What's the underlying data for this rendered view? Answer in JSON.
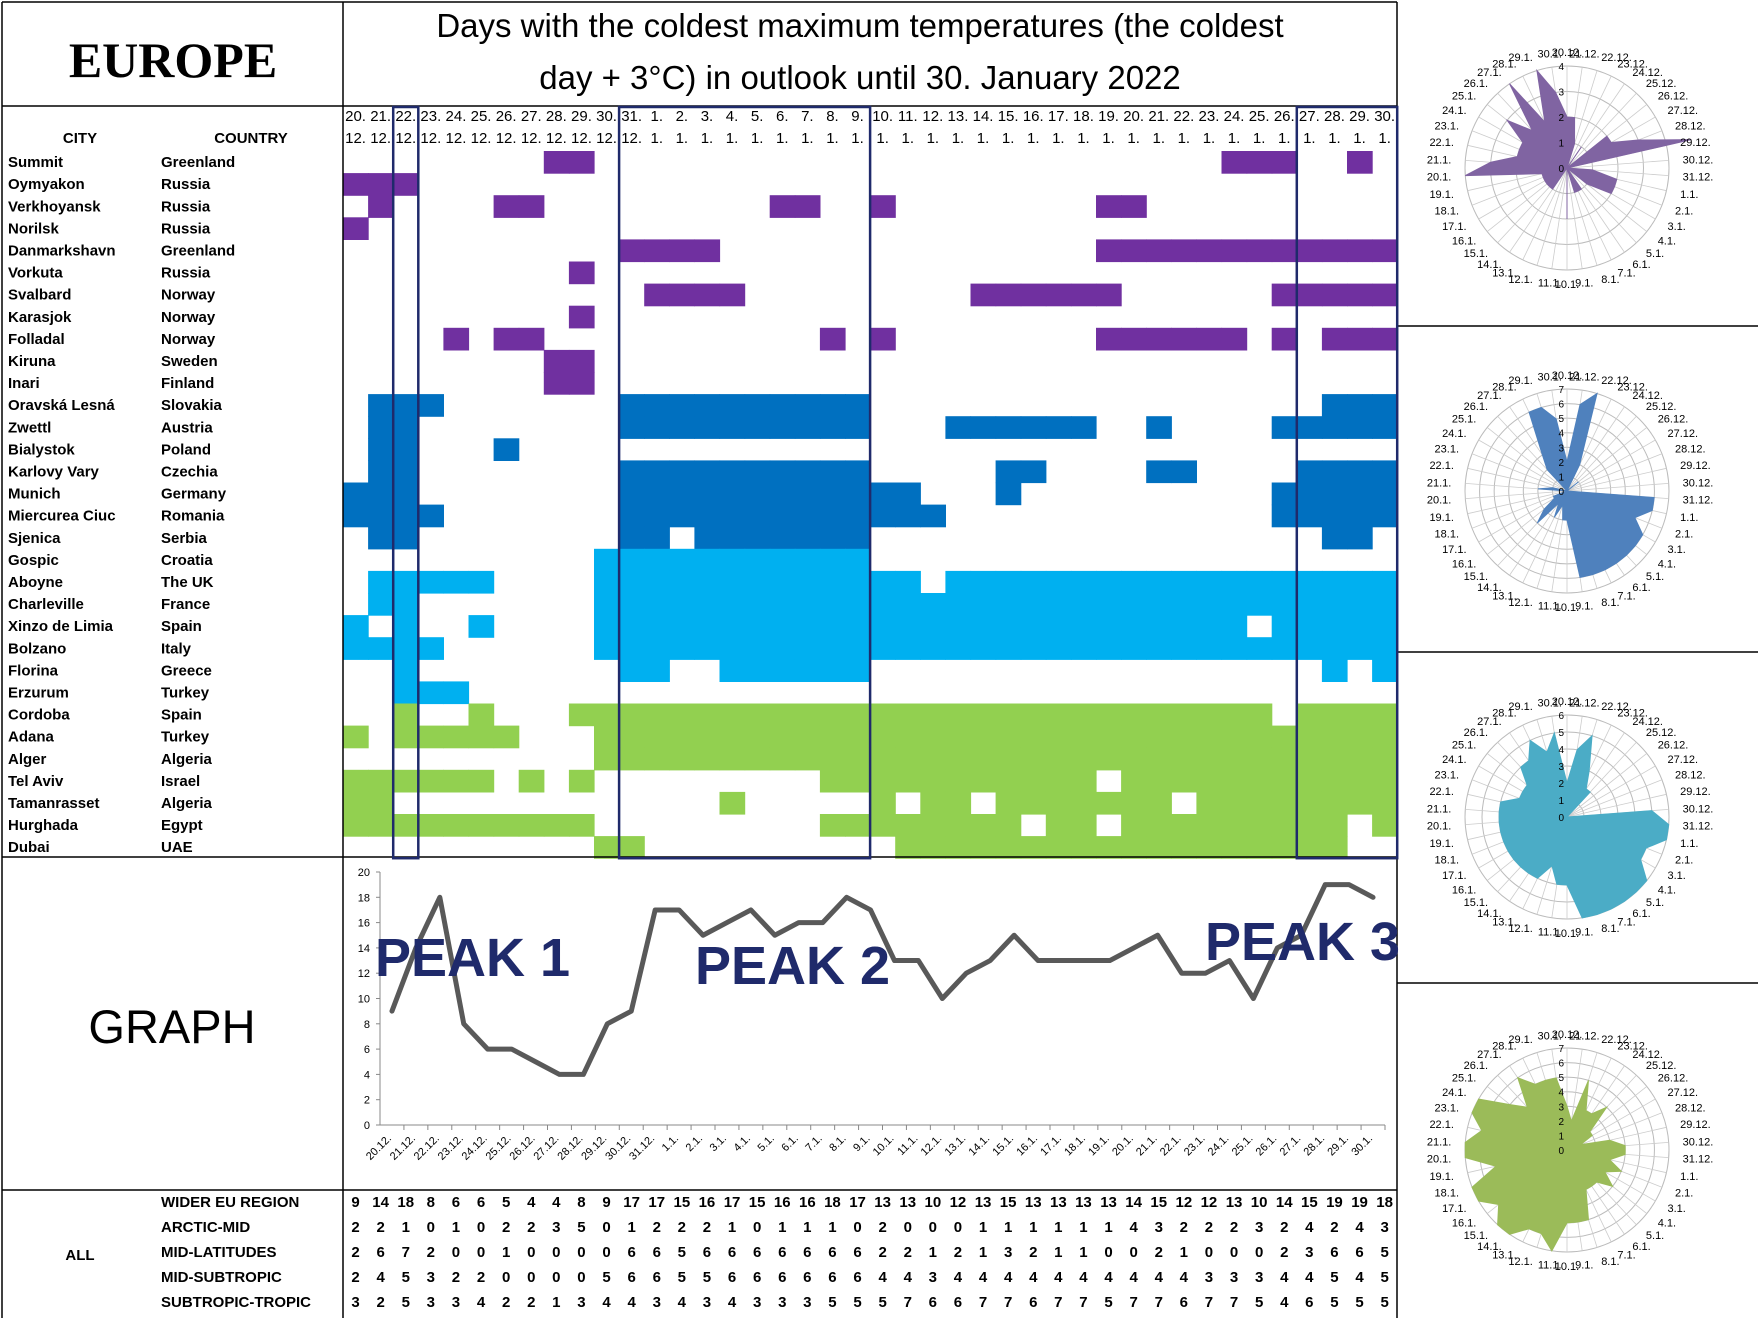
{
  "header": {
    "region": "EUROPE",
    "title_line1": "Days with the coldest maximum temperatures (the coldest",
    "title_line2": "day + 3°C) in outlook until 30. January 2022",
    "city_label": "CITY",
    "country_label": "COUNTRY"
  },
  "dates": {
    "day": [
      "20.",
      "21.",
      "22.",
      "23.",
      "24.",
      "25.",
      "26.",
      "27.",
      "28.",
      "29.",
      "30.",
      "31.",
      "1.",
      "2.",
      "3.",
      "4.",
      "5.",
      "6.",
      "7.",
      "8.",
      "9.",
      "10.",
      "11.",
      "12.",
      "13.",
      "14.",
      "15.",
      "16.",
      "17.",
      "18.",
      "19.",
      "20.",
      "21.",
      "22.",
      "23.",
      "24.",
      "25.",
      "26.",
      "27.",
      "28.",
      "29.",
      "30."
    ],
    "month": [
      "12.",
      "12.",
      "12.",
      "12.",
      "12.",
      "12.",
      "12.",
      "12.",
      "12.",
      "12.",
      "12.",
      "12.",
      "1.",
      "1.",
      "1.",
      "1.",
      "1.",
      "1.",
      "1.",
      "1.",
      "1.",
      "1.",
      "1.",
      "1.",
      "1.",
      "1.",
      "1.",
      "1.",
      "1.",
      "1.",
      "1.",
      "1.",
      "1.",
      "1.",
      "1.",
      "1.",
      "1.",
      "1.",
      "1.",
      "1.",
      "1.",
      "1."
    ],
    "short": [
      "20.12.",
      "21.12.",
      "22.12.",
      "23.12.",
      "24.12.",
      "25.12.",
      "26.12.",
      "27.12.",
      "28.12.",
      "29.12.",
      "30.12.",
      "31.12.",
      "1.1.",
      "2.1.",
      "3.1.",
      "4.1.",
      "5.1.",
      "6.1.",
      "7.1.",
      "8.1.",
      "9.1.",
      "10.1.",
      "11.1.",
      "12.1.",
      "13.1.",
      "14.1.",
      "15.1.",
      "16.1.",
      "17.1.",
      "18.1.",
      "19.1.",
      "20.1.",
      "21.1.",
      "22.1.",
      "23.1.",
      "24.1.",
      "25.1.",
      "26.1.",
      "27.1.",
      "28.1.",
      "29.1.",
      "30.1."
    ]
  },
  "colors": {
    "arctic": "#7030A0",
    "midlat": "#0070C0",
    "midsub": "#00B0F0",
    "subtrop": "#92D050",
    "frame": "#1F2A6B",
    "line": "#595959",
    "peak_text": "#1F2A6B",
    "radar_arctic": "#8064A2",
    "radar_midlat": "#4F81BD",
    "radar_midsub": "#4BACC6",
    "radar_subtrop": "#9BBB59"
  },
  "cities": [
    {
      "city": "Summit",
      "country": "Greenland",
      "group": "arctic",
      "days": [
        8,
        9,
        35,
        36,
        37,
        40
      ]
    },
    {
      "city": "Oymyakon",
      "country": "Russia",
      "group": "arctic",
      "days": [
        0,
        1,
        2
      ]
    },
    {
      "city": "Verkhoyansk",
      "country": "Russia",
      "group": "arctic",
      "days": [
        1,
        6,
        7,
        17,
        18,
        21,
        30,
        31
      ]
    },
    {
      "city": "Norilsk",
      "country": "Russia",
      "group": "arctic",
      "days": [
        0
      ]
    },
    {
      "city": "Danmarkshavn",
      "country": "Greenland",
      "group": "arctic",
      "days": [
        11,
        12,
        13,
        14,
        30,
        31,
        32,
        33,
        34,
        35,
        36,
        37,
        38,
        39,
        40,
        41
      ]
    },
    {
      "city": "Vorkuta",
      "country": "Russia",
      "group": "arctic",
      "days": [
        9
      ]
    },
    {
      "city": "Svalbard",
      "country": "Norway",
      "group": "arctic",
      "days": [
        12,
        13,
        14,
        15,
        25,
        26,
        27,
        28,
        29,
        30,
        37,
        38,
        39,
        40,
        41
      ]
    },
    {
      "city": "Karasjok",
      "country": "Norway",
      "group": "arctic",
      "days": [
        9
      ]
    },
    {
      "city": "Folladal",
      "country": "Norway",
      "group": "arctic",
      "days": [
        4,
        6,
        7,
        19,
        21,
        30,
        31,
        32,
        33,
        34,
        35,
        37,
        39,
        40,
        41
      ]
    },
    {
      "city": "Kiruna",
      "country": "Sweden",
      "group": "arctic",
      "days": [
        8,
        9
      ]
    },
    {
      "city": "Inari",
      "country": "Finland",
      "group": "arctic",
      "days": [
        8,
        9
      ]
    },
    {
      "city": "Oravská Lesná",
      "country": "Slovakia",
      "group": "midlat",
      "days": [
        1,
        2,
        3,
        11,
        12,
        13,
        14,
        15,
        16,
        17,
        18,
        19,
        20,
        39,
        40,
        41
      ]
    },
    {
      "city": "Zwettl",
      "country": "Austria",
      "group": "midlat",
      "days": [
        1,
        2,
        11,
        12,
        13,
        14,
        15,
        16,
        17,
        18,
        19,
        20,
        24,
        25,
        26,
        27,
        28,
        29,
        32,
        37,
        38,
        39,
        40,
        41
      ]
    },
    {
      "city": "Bialystok",
      "country": "Poland",
      "group": "midlat",
      "days": [
        1,
        2,
        6
      ]
    },
    {
      "city": "Karlovy Vary",
      "country": "Czechia",
      "group": "midlat",
      "days": [
        1,
        2,
        11,
        12,
        13,
        14,
        15,
        16,
        17,
        18,
        19,
        20,
        26,
        27,
        32,
        33,
        38,
        39,
        40,
        41
      ]
    },
    {
      "city": "Munich",
      "country": "Germany",
      "group": "midlat",
      "days": [
        0,
        1,
        2,
        11,
        12,
        13,
        14,
        15,
        16,
        17,
        18,
        19,
        20,
        21,
        22,
        26,
        37,
        38,
        39,
        40,
        41
      ]
    },
    {
      "city": "Miercurea Ciuc",
      "country": "Romania",
      "group": "midlat",
      "days": [
        0,
        1,
        2,
        3,
        11,
        12,
        13,
        14,
        15,
        16,
        17,
        18,
        19,
        20,
        21,
        22,
        23,
        37,
        38,
        39,
        40,
        41
      ]
    },
    {
      "city": "Sjenica",
      "country": "Serbia",
      "group": "midlat",
      "days": [
        1,
        2,
        11,
        12,
        14,
        15,
        16,
        17,
        18,
        19,
        20,
        39,
        40
      ]
    },
    {
      "city": "Gospic",
      "country": "Croatia",
      "group": "midsub",
      "days": [
        10,
        11,
        12,
        13,
        14,
        15,
        16,
        17,
        18,
        19,
        20
      ]
    },
    {
      "city": "Aboyne",
      "country": "The UK",
      "group": "midsub",
      "days": [
        1,
        2,
        3,
        4,
        5,
        10,
        11,
        12,
        13,
        14,
        15,
        16,
        17,
        18,
        19,
        20,
        21,
        22,
        24,
        25,
        26,
        27,
        28,
        29,
        30,
        31,
        32,
        33,
        34,
        35,
        36,
        37,
        38,
        39,
        40,
        41
      ]
    },
    {
      "city": "Charleville",
      "country": "France",
      "group": "midsub",
      "days": [
        1,
        2,
        10,
        11,
        12,
        13,
        14,
        15,
        16,
        17,
        18,
        19,
        20,
        21,
        22,
        23,
        24,
        25,
        26,
        27,
        28,
        29,
        30,
        31,
        32,
        33,
        34,
        35,
        36,
        37,
        38,
        39,
        40,
        41
      ]
    },
    {
      "city": "Xinzo de Limia",
      "country": "Spain",
      "group": "midsub",
      "days": [
        0,
        2,
        5,
        10,
        11,
        12,
        13,
        14,
        15,
        16,
        17,
        18,
        19,
        20,
        21,
        22,
        23,
        24,
        25,
        26,
        27,
        28,
        29,
        30,
        31,
        32,
        33,
        34,
        35,
        37,
        38,
        39,
        40,
        41
      ]
    },
    {
      "city": "Bolzano",
      "country": "Italy",
      "group": "midsub",
      "days": [
        0,
        1,
        2,
        3,
        10,
        11,
        12,
        13,
        14,
        15,
        16,
        17,
        18,
        19,
        20,
        21,
        22,
        23,
        24,
        25,
        26,
        27,
        28,
        29,
        30,
        31,
        32,
        33,
        34,
        35,
        36,
        37,
        38,
        39,
        40,
        41
      ]
    },
    {
      "city": "Florina",
      "country": "Greece",
      "group": "midsub",
      "days": [
        2,
        11,
        12,
        15,
        16,
        17,
        18,
        19,
        20,
        39,
        41
      ]
    },
    {
      "city": "Erzurum",
      "country": "Turkey",
      "group": "midsub",
      "days": [
        2,
        3,
        4
      ]
    },
    {
      "city": "Cordoba",
      "country": "Spain",
      "group": "subtrop",
      "days": [
        2,
        5,
        9,
        10,
        11,
        12,
        13,
        14,
        15,
        16,
        17,
        18,
        19,
        20,
        21,
        22,
        23,
        24,
        25,
        26,
        27,
        28,
        29,
        30,
        31,
        32,
        33,
        34,
        35,
        36,
        38,
        39,
        40,
        41
      ]
    },
    {
      "city": "Adana",
      "country": "Turkey",
      "group": "subtrop",
      "days": [
        0,
        2,
        3,
        4,
        5,
        6,
        10,
        11,
        12,
        13,
        14,
        15,
        16,
        17,
        18,
        19,
        20,
        21,
        22,
        23,
        24,
        25,
        26,
        27,
        28,
        29,
        30,
        31,
        32,
        33,
        34,
        35,
        36,
        37,
        38,
        39,
        40,
        41
      ]
    },
    {
      "city": "Alger",
      "country": "Algeria",
      "group": "subtrop",
      "days": [
        10,
        11,
        12,
        13,
        14,
        15,
        16,
        17,
        18,
        19,
        20,
        21,
        22,
        23,
        24,
        25,
        26,
        27,
        28,
        29,
        30,
        31,
        32,
        33,
        34,
        35,
        36,
        37,
        38,
        39,
        40,
        41
      ]
    },
    {
      "city": "Tel Aviv",
      "country": "Israel",
      "group": "subtrop",
      "days": [
        0,
        1,
        2,
        3,
        4,
        5,
        7,
        9,
        19,
        20,
        21,
        22,
        23,
        24,
        25,
        26,
        27,
        28,
        29,
        31,
        32,
        33,
        34,
        35,
        36,
        37,
        38,
        39,
        40,
        41
      ]
    },
    {
      "city": "Tamanrasset",
      "country": "Algeria",
      "group": "subtrop",
      "days": [
        0,
        1,
        15,
        21,
        23,
        24,
        26,
        27,
        28,
        29,
        30,
        31,
        32,
        34,
        35,
        36,
        37,
        38,
        39,
        40,
        41
      ]
    },
    {
      "city": "Hurghada",
      "country": "Egypt",
      "group": "subtrop",
      "days": [
        0,
        1,
        2,
        3,
        4,
        5,
        6,
        7,
        8,
        9,
        19,
        20,
        21,
        22,
        23,
        24,
        25,
        26,
        28,
        29,
        31,
        32,
        33,
        34,
        35,
        36,
        37,
        38,
        39,
        41
      ]
    },
    {
      "city": "Dubai",
      "country": "UAE",
      "group": "subtrop",
      "days": [
        10,
        11,
        22,
        23,
        24,
        25,
        26,
        27,
        28,
        29,
        30,
        31,
        32,
        33,
        34,
        35,
        36,
        37,
        38,
        39
      ]
    }
  ],
  "boxes": [
    {
      "from": 2,
      "to": 2
    },
    {
      "from": 11,
      "to": 20
    },
    {
      "from": 38,
      "to": 41
    }
  ],
  "graph": {
    "label": "GRAPH",
    "peaks": [
      "PEAK 1",
      "PEAK 2",
      "PEAK 3"
    ]
  },
  "summary": {
    "all_label": "ALL",
    "rows": [
      {
        "label": "WIDER EU REGION",
        "values": [
          9,
          14,
          18,
          8,
          6,
          6,
          5,
          4,
          4,
          8,
          9,
          17,
          17,
          15,
          16,
          17,
          15,
          16,
          16,
          18,
          17,
          13,
          13,
          10,
          12,
          13,
          15,
          13,
          13,
          13,
          13,
          14,
          15,
          12,
          12,
          13,
          10,
          14,
          15,
          19,
          19,
          18
        ]
      },
      {
        "label": "ARCTIC-MID",
        "values": [
          2,
          2,
          1,
          0,
          1,
          0,
          2,
          2,
          3,
          5,
          0,
          1,
          2,
          2,
          2,
          1,
          0,
          1,
          1,
          1,
          0,
          2,
          0,
          0,
          0,
          1,
          1,
          1,
          1,
          1,
          1,
          4,
          3,
          2,
          2,
          2,
          3,
          2,
          4,
          2,
          4,
          3
        ]
      },
      {
        "label": "MID-LATITUDES",
        "values": [
          2,
          6,
          7,
          2,
          0,
          0,
          1,
          0,
          0,
          0,
          0,
          6,
          6,
          5,
          6,
          6,
          6,
          6,
          6,
          6,
          6,
          2,
          2,
          1,
          2,
          1,
          3,
          2,
          1,
          1,
          0,
          0,
          2,
          1,
          0,
          0,
          0,
          2,
          3,
          6,
          6,
          5
        ]
      },
      {
        "label": "MID-SUBTROPIC",
        "values": [
          2,
          4,
          5,
          3,
          2,
          2,
          0,
          0,
          0,
          0,
          5,
          6,
          6,
          5,
          5,
          6,
          6,
          6,
          6,
          6,
          6,
          4,
          4,
          3,
          4,
          4,
          4,
          4,
          4,
          4,
          4,
          4,
          4,
          4,
          3,
          3,
          3,
          4,
          4,
          5,
          4,
          5
        ]
      },
      {
        "label": "SUBTROPIC-TROPIC",
        "values": [
          3,
          2,
          5,
          3,
          3,
          4,
          2,
          2,
          1,
          3,
          4,
          4,
          3,
          4,
          3,
          4,
          3,
          3,
          3,
          5,
          5,
          5,
          7,
          6,
          6,
          7,
          7,
          6,
          7,
          7,
          5,
          7,
          7,
          6,
          7,
          7,
          5,
          4,
          6,
          5,
          5,
          5
        ]
      }
    ]
  },
  "chart_data": [
    {
      "type": "heatmap",
      "title": "Days with the coldest maximum temperatures (the coldest day + 3°C) in outlook until 30. January 2022",
      "x": [
        "20.12.",
        "21.12.",
        "22.12.",
        "23.12.",
        "24.12.",
        "25.12.",
        "26.12.",
        "27.12.",
        "28.12.",
        "29.12.",
        "30.12.",
        "31.12.",
        "1.1.",
        "2.1.",
        "3.1.",
        "4.1.",
        "5.1.",
        "6.1.",
        "7.1.",
        "8.1.",
        "9.1.",
        "10.1.",
        "11.1.",
        "12.1.",
        "13.1.",
        "14.1.",
        "15.1.",
        "16.1.",
        "17.1.",
        "18.1.",
        "19.1.",
        "20.1.",
        "21.1.",
        "22.1.",
        "23.1.",
        "24.1.",
        "25.1.",
        "26.1.",
        "27.1.",
        "28.1.",
        "29.1.",
        "30.1."
      ],
      "rows": "cities"
    },
    {
      "type": "line",
      "categories": [
        "20.12.",
        "21.12.",
        "22.12.",
        "23.12.",
        "24.12.",
        "25.12.",
        "26.12.",
        "27.12.",
        "28.12.",
        "29.12.",
        "30.12.",
        "31.12.",
        "1.1.",
        "2.1.",
        "3.1.",
        "4.1.",
        "5.1.",
        "6.1.",
        "7.1.",
        "8.1.",
        "9.1.",
        "10.1.",
        "11.1.",
        "12.1.",
        "13.1.",
        "14.1.",
        "15.1.",
        "16.1.",
        "17.1.",
        "18.1.",
        "19.1.",
        "20.1.",
        "21.1.",
        "22.1.",
        "23.1.",
        "24.1.",
        "25.1.",
        "26.1.",
        "27.1.",
        "28.1.",
        "29.1.",
        "30.1."
      ],
      "values": [
        9,
        14,
        18,
        8,
        6,
        6,
        5,
        4,
        4,
        8,
        9,
        17,
        17,
        15,
        16,
        17,
        15,
        16,
        16,
        18,
        17,
        13,
        13,
        10,
        12,
        13,
        15,
        13,
        13,
        13,
        13,
        14,
        15,
        12,
        12,
        13,
        10,
        14,
        15,
        19,
        19,
        18
      ],
      "ylim": [
        0,
        20
      ],
      "yticks": [
        0,
        2,
        4,
        6,
        8,
        10,
        12,
        14,
        16,
        18,
        20
      ],
      "annotations": [
        "PEAK 1",
        "PEAK 2",
        "PEAK 3"
      ]
    },
    {
      "type": "radar",
      "values_from": "summary.rows.1",
      "rlim": [
        0,
        4
      ],
      "rticks": [
        0,
        1,
        2,
        3,
        4
      ],
      "color": "#8064A2"
    },
    {
      "type": "radar",
      "values_from": "summary.rows.2",
      "rlim": [
        0,
        7
      ],
      "rticks": [
        0,
        1,
        2,
        3,
        4,
        5,
        6,
        7
      ],
      "color": "#4F81BD"
    },
    {
      "type": "radar",
      "values_from": "summary.rows.3",
      "rlim": [
        0,
        6
      ],
      "rticks": [
        0,
        1,
        2,
        3,
        4,
        5,
        6
      ],
      "color": "#4BACC6"
    },
    {
      "type": "radar",
      "values_from": "summary.rows.4",
      "rlim": [
        0,
        7
      ],
      "rticks": [
        0,
        1,
        2,
        3,
        4,
        5,
        6,
        7
      ],
      "color": "#9BBB59"
    }
  ]
}
